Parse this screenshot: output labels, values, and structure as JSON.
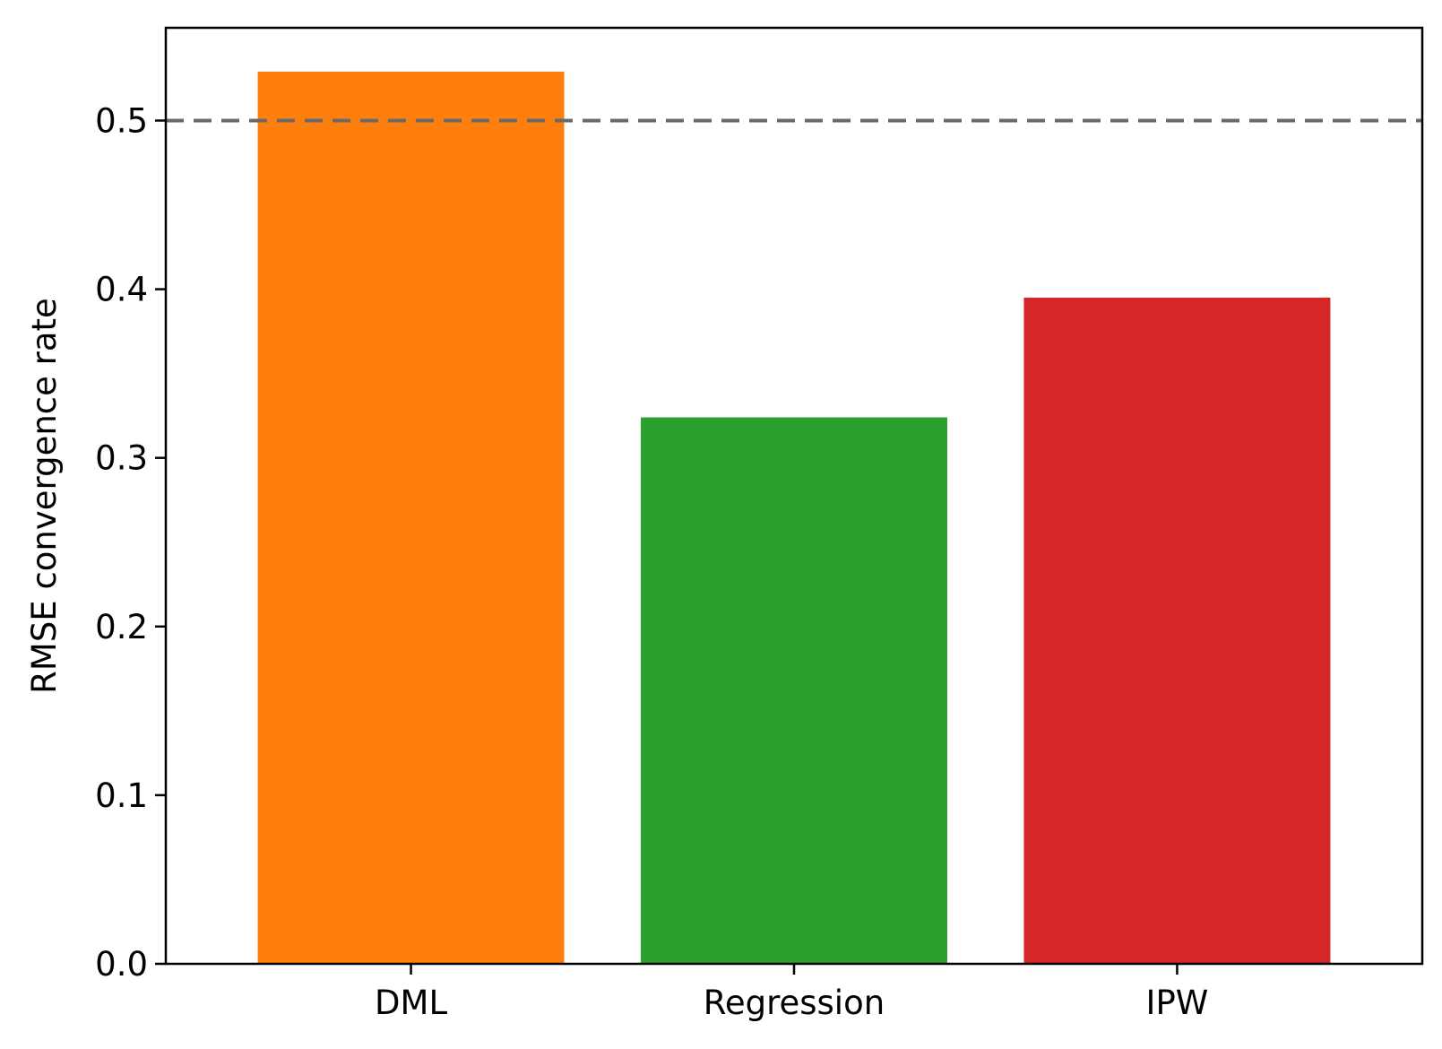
{
  "chart_data": {
    "type": "bar",
    "categories": [
      "DML",
      "Regression",
      "IPW"
    ],
    "values": [
      0.529,
      0.324,
      0.395
    ],
    "colors": [
      "#ff7f0e",
      "#2ca02c",
      "#d62728"
    ],
    "title": "",
    "xlabel": "",
    "ylabel": "RMSE convergence rate",
    "ylim": [
      0,
      0.555
    ],
    "yticks": [
      0.0,
      0.1,
      0.2,
      0.3,
      0.4,
      0.5
    ],
    "ytick_labels": [
      "0.0",
      "0.1",
      "0.2",
      "0.3",
      "0.4",
      "0.5"
    ],
    "reference_line": {
      "y": 0.5,
      "style": "dashed",
      "color": "#696969"
    },
    "grid": false,
    "legend": "none"
  }
}
